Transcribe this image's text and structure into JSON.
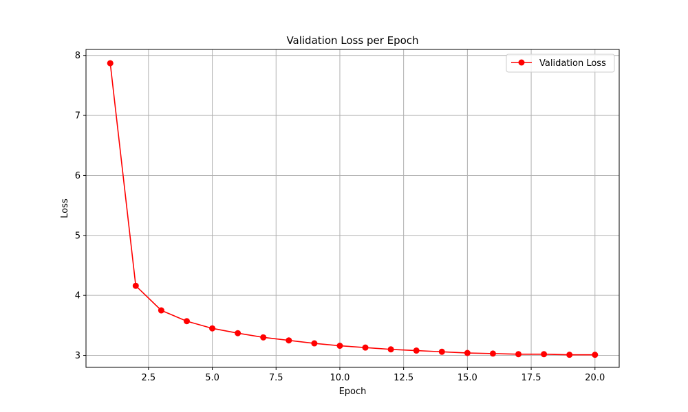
{
  "chart_data": {
    "type": "line",
    "title": "Validation Loss per Epoch",
    "xlabel": "Epoch",
    "ylabel": "Loss",
    "xlim": [
      0.05,
      20.95
    ],
    "ylim": [
      2.8,
      8.1
    ],
    "xticks": [
      2.5,
      5.0,
      7.5,
      10.0,
      12.5,
      15.0,
      17.5,
      20.0
    ],
    "xtick_labels": [
      "2.5",
      "5.0",
      "7.5",
      "10.0",
      "12.5",
      "15.0",
      "17.5",
      "20.0"
    ],
    "yticks": [
      3,
      4,
      5,
      6,
      7,
      8
    ],
    "ytick_labels": [
      "3",
      "4",
      "5",
      "6",
      "7",
      "8"
    ],
    "grid": true,
    "legend_position": "top-right",
    "series": [
      {
        "name": "Validation Loss",
        "color": "#ff0000",
        "marker": "circle",
        "x": [
          1,
          2,
          3,
          4,
          5,
          6,
          7,
          8,
          9,
          10,
          11,
          12,
          13,
          14,
          15,
          16,
          17,
          18,
          19,
          20
        ],
        "y": [
          7.87,
          4.16,
          3.75,
          3.57,
          3.45,
          3.37,
          3.3,
          3.25,
          3.2,
          3.16,
          3.13,
          3.1,
          3.08,
          3.06,
          3.04,
          3.03,
          3.02,
          3.02,
          3.01,
          3.01
        ]
      }
    ]
  }
}
